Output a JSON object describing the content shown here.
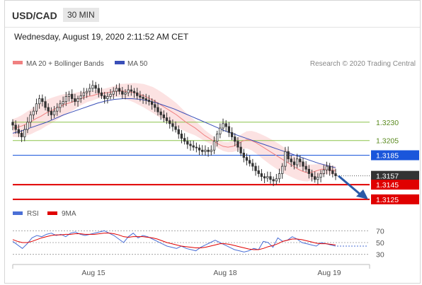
{
  "header": {
    "symbol": "USD/CAD",
    "timeframe": "30 MIN",
    "datetime": "Wednesday, August 19, 2020 2:11:52 AM CET"
  },
  "legend": {
    "ma20_label": "MA 20 + Bollinger Bands",
    "ma50_label": "MA 50",
    "copyright": "Research © 2020 Trading Central",
    "rsi_label": "RSI",
    "ma9_label": "9MA"
  },
  "colors": {
    "ma20": "#f08080",
    "bollinger_fill": "#fbd5d5",
    "ma50": "#3a4fb8",
    "level_green": "#8bc34a",
    "level_blue": "#1a56db",
    "level_red": "#e00000",
    "current_price": "#333333",
    "candle_up": "#ffffff",
    "candle_down": "#333333",
    "arrow": "#2a5aa8",
    "rsi": "#4a6fd6",
    "rsi_ma": "#e00000"
  },
  "chart_data": [
    {
      "type": "candlestick",
      "title": "",
      "x_ticks": [
        "Aug 15",
        "Aug 18",
        "Aug 19"
      ],
      "price_levels": [
        {
          "label": "1.3230",
          "value": 1.323,
          "kind": "resistance"
        },
        {
          "label": "1.3205",
          "value": 1.3205,
          "kind": "resistance"
        },
        {
          "label": "1.3185",
          "value": 1.3185,
          "kind": "pivot"
        },
        {
          "label": "1.3157",
          "value": 1.3157,
          "kind": "current"
        },
        {
          "label": "1.3145",
          "value": 1.3145,
          "kind": "support"
        },
        {
          "label": "1.3125",
          "value": 1.3125,
          "kind": "support"
        }
      ],
      "ylim": [
        1.3122,
        1.33
      ],
      "close_series": [
        1.3226,
        1.322,
        1.3215,
        1.321,
        1.322,
        1.323,
        1.324,
        1.3245,
        1.3255,
        1.3262,
        1.3258,
        1.325,
        1.3245,
        1.324,
        1.3245,
        1.325,
        1.3255,
        1.3258,
        1.3265,
        1.3268,
        1.3262,
        1.3258,
        1.3262,
        1.3266,
        1.327,
        1.3272,
        1.3276,
        1.328,
        1.3276,
        1.327,
        1.3266,
        1.3262,
        1.3265,
        1.3268,
        1.3272,
        1.3276,
        1.3272,
        1.3268,
        1.327,
        1.3274,
        1.3272,
        1.327,
        1.3266,
        1.3264,
        1.3262,
        1.326,
        1.3258,
        1.3254,
        1.325,
        1.3244,
        1.324,
        1.3236,
        1.3232,
        1.3228,
        1.3224,
        1.322,
        1.3214,
        1.3208,
        1.3204,
        1.32,
        1.3198,
        1.3196,
        1.3195,
        1.3192,
        1.319,
        1.3192,
        1.319,
        1.3192,
        1.3204,
        1.3214,
        1.3222,
        1.3228,
        1.3224,
        1.3216,
        1.321,
        1.3204,
        1.3196,
        1.3188,
        1.3182,
        1.3178,
        1.3174,
        1.317,
        1.3164,
        1.316,
        1.3156,
        1.3154,
        1.3156,
        1.3152,
        1.315,
        1.3153,
        1.316,
        1.317,
        1.319,
        1.318,
        1.3176,
        1.3172,
        1.318,
        1.3176,
        1.317,
        1.3166,
        1.316,
        1.3156,
        1.3152,
        1.3155,
        1.316,
        1.3165,
        1.317,
        1.3164,
        1.316,
        1.3157
      ],
      "ma20_series": [
        1.3222,
        1.3223,
        1.3225,
        1.3228,
        1.3231,
        1.3235,
        1.3238,
        1.3242,
        1.3245,
        1.3248,
        1.3251,
        1.3254,
        1.3256,
        1.3258,
        1.3261,
        1.3263,
        1.3265,
        1.3266,
        1.3268,
        1.3269,
        1.327,
        1.3271,
        1.3272,
        1.3273,
        1.3272,
        1.3271,
        1.327,
        1.3268,
        1.3266,
        1.3263,
        1.326,
        1.3256,
        1.3252,
        1.3248,
        1.3244,
        1.324,
        1.3235,
        1.323,
        1.3226,
        1.3222,
        1.3217,
        1.3212,
        1.3208,
        1.3204,
        1.32,
        1.3197,
        1.3196,
        1.3197,
        1.32,
        1.3204,
        1.3206,
        1.3205,
        1.3202,
        1.3198,
        1.3194,
        1.319,
        1.3186,
        1.3182,
        1.3178,
        1.3174,
        1.317,
        1.3166,
        1.3163,
        1.3161,
        1.3162,
        1.3164,
        1.3166,
        1.3166,
        1.3165,
        1.3164
      ],
      "ma50_series": [
        1.3215,
        1.3218,
        1.3222,
        1.3226,
        1.323,
        1.3235,
        1.324,
        1.3244,
        1.3248,
        1.3252,
        1.3256,
        1.3259,
        1.3261,
        1.3262,
        1.3262,
        1.3261,
        1.3259,
        1.3256,
        1.3252,
        1.3248,
        1.3243,
        1.3238,
        1.3233,
        1.3228,
        1.3223,
        1.3218,
        1.3214,
        1.321,
        1.3206,
        1.3202,
        1.3198,
        1.3194,
        1.319,
        1.3186,
        1.3182,
        1.3178,
        1.3174,
        1.3171,
        1.3168
      ],
      "forecast": {
        "from": 1.3157,
        "to": 1.3125,
        "direction": "down"
      }
    },
    {
      "type": "line",
      "title": "RSI",
      "y_ticks": [
        70,
        50,
        30
      ],
      "ylim": [
        20,
        80
      ],
      "series": [
        {
          "name": "RSI",
          "values": [
            52,
            46,
            40,
            48,
            58,
            62,
            60,
            64,
            66,
            62,
            64,
            60,
            66,
            68,
            64,
            62,
            64,
            66,
            68,
            70,
            66,
            62,
            56,
            50,
            60,
            66,
            58,
            62,
            60,
            56,
            52,
            48,
            44,
            42,
            40,
            44,
            40,
            38,
            36,
            42,
            46,
            50,
            54,
            50,
            46,
            42,
            38,
            36,
            34,
            36,
            40,
            38,
            52,
            50,
            42,
            58,
            52,
            54,
            60,
            56,
            50,
            48,
            46,
            44,
            50,
            48,
            46,
            44
          ]
        },
        {
          "name": "9MA",
          "values": [
            55,
            52,
            50,
            50,
            52,
            55,
            58,
            60,
            62,
            63,
            63,
            64,
            64,
            65,
            65,
            64,
            64,
            64,
            65,
            66,
            66,
            65,
            63,
            60,
            59,
            60,
            60,
            60,
            59,
            58,
            56,
            53,
            50,
            48,
            46,
            44,
            43,
            42,
            41,
            41,
            42,
            44,
            46,
            48,
            48,
            47,
            45,
            43,
            41,
            39,
            38,
            38,
            40,
            43,
            45,
            48,
            52,
            54,
            56,
            56,
            55,
            53,
            51,
            49,
            48,
            48,
            47,
            46
          ]
        }
      ]
    }
  ]
}
